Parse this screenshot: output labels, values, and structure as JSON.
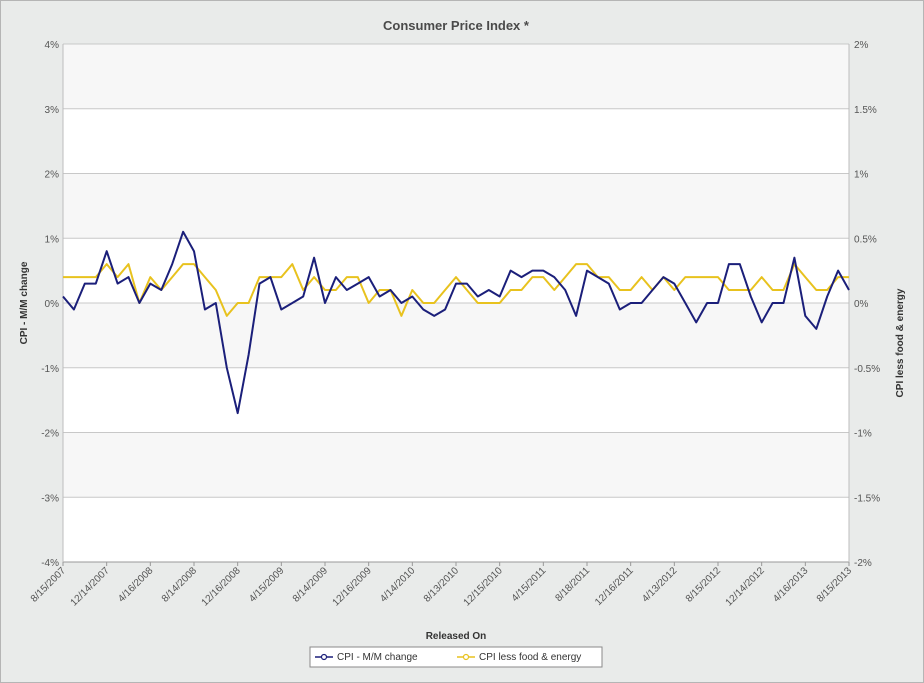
{
  "chart_data": {
    "type": "line",
    "title": "Consumer Price Index *",
    "xlabel": "Released On",
    "ylabel_left": "CPI - M/M change",
    "ylabel_right": "CPI less food & energy",
    "y_left_ticks": [
      "4%",
      "3%",
      "2%",
      "1%",
      "0%",
      "-1%",
      "-2%",
      "-3%",
      "-4%"
    ],
    "y_right_ticks": [
      "2%",
      "1.5%",
      "1%",
      "0.5%",
      "0%",
      "-0.5%",
      "-1%",
      "-1.5%",
      "-2%"
    ],
    "ylim_left": [
      -4,
      4
    ],
    "ylim_right": [
      -2,
      2
    ],
    "x_tick_labels": [
      "8/15/2007",
      "12/14/2007",
      "4/16/2008",
      "8/14/2008",
      "12/16/2008",
      "4/15/2009",
      "8/14/2009",
      "12/16/2009",
      "4/14/2010",
      "8/13/2010",
      "12/15/2010",
      "4/15/2011",
      "8/18/2011",
      "12/16/2011",
      "4/13/2012",
      "8/15/2012",
      "12/14/2012",
      "4/16/2013",
      "8/15/2013"
    ],
    "grid": true,
    "legend_position": "bottom-center",
    "series": [
      {
        "name": "CPI - M/M change",
        "axis": "left",
        "color": "#1b1f7a",
        "values": [
          0.1,
          -0.1,
          0.3,
          0.3,
          0.8,
          0.3,
          0.4,
          0.0,
          0.3,
          0.2,
          0.6,
          1.1,
          0.8,
          -0.1,
          0.0,
          -1.0,
          -1.7,
          -0.8,
          0.3,
          0.4,
          -0.1,
          0.0,
          0.1,
          0.7,
          0.0,
          0.4,
          0.2,
          0.3,
          0.4,
          0.1,
          0.2,
          0.0,
          0.1,
          -0.1,
          -0.2,
          -0.1,
          0.3,
          0.3,
          0.1,
          0.2,
          0.1,
          0.5,
          0.4,
          0.5,
          0.5,
          0.4,
          0.2,
          -0.2,
          0.5,
          0.4,
          0.3,
          -0.1,
          0.0,
          0.0,
          0.2,
          0.4,
          0.3,
          0.0,
          -0.3,
          0.0,
          0.0,
          0.6,
          0.6,
          0.1,
          -0.3,
          0.0,
          0.0,
          0.7,
          -0.2,
          -0.4,
          0.1,
          0.5,
          0.2
        ]
      },
      {
        "name": "CPI less food & energy",
        "axis": "right",
        "color": "#e8c21e",
        "values": [
          0.2,
          0.2,
          0.2,
          0.2,
          0.3,
          0.2,
          0.3,
          0.0,
          0.2,
          0.1,
          0.2,
          0.3,
          0.3,
          0.2,
          0.1,
          -0.1,
          0.0,
          0.0,
          0.2,
          0.2,
          0.2,
          0.3,
          0.1,
          0.2,
          0.1,
          0.1,
          0.2,
          0.2,
          0.0,
          0.1,
          0.1,
          -0.1,
          0.1,
          0.0,
          0.0,
          0.1,
          0.2,
          0.1,
          0.0,
          0.0,
          0.0,
          0.1,
          0.1,
          0.2,
          0.2,
          0.1,
          0.2,
          0.3,
          0.3,
          0.2,
          0.2,
          0.1,
          0.1,
          0.2,
          0.1,
          0.2,
          0.1,
          0.2,
          0.2,
          0.2,
          0.2,
          0.1,
          0.1,
          0.1,
          0.2,
          0.1,
          0.1,
          0.3,
          0.2,
          0.1,
          0.1,
          0.2,
          0.2
        ]
      }
    ]
  }
}
